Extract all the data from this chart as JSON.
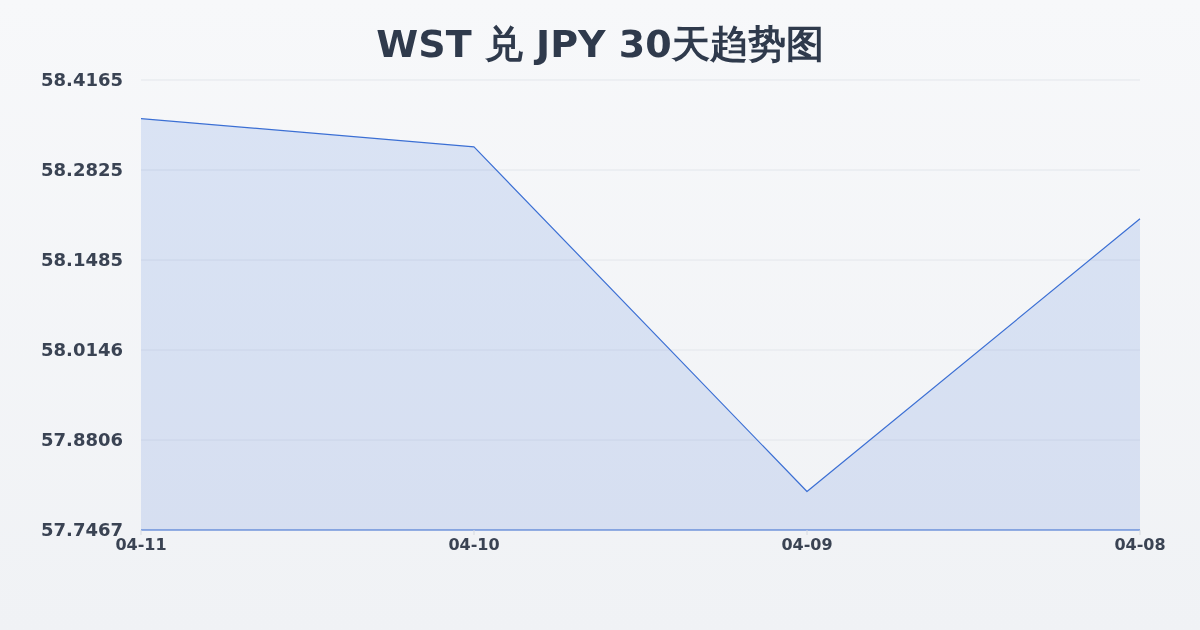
{
  "chart_data": {
    "type": "area",
    "title": "WST 兑 JPY 30天趋势图",
    "categories": [
      "04-11",
      "04-10",
      "04-09",
      "04-08"
    ],
    "values": [
      58.359,
      58.317,
      57.804,
      58.21
    ],
    "color": "#3b6fd4",
    "ylim": [
      57.7467,
      58.4165
    ],
    "yticks": [
      57.7467,
      57.8806,
      58.0146,
      58.1485,
      58.2825,
      58.4165
    ],
    "grid": "y"
  }
}
